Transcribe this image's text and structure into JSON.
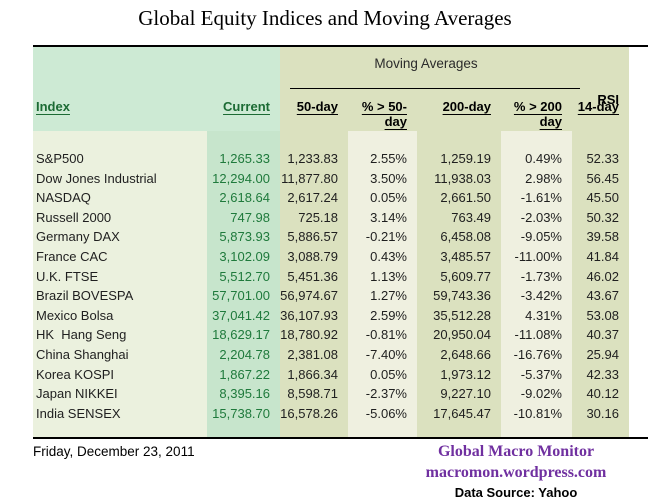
{
  "title": "Global Equity Indices and Moving Averages",
  "table": {
    "group_header": "Moving Averages",
    "rsi_header_top": "RSI",
    "columns": {
      "index": "Index",
      "current": "Current",
      "ma50": "50-day",
      "pct50": "% > 50-day",
      "ma200": "200-day",
      "pct200": "% > 200 day",
      "rsi": "14-day"
    },
    "rows": [
      {
        "index": "S&P500",
        "current": "1,265.33",
        "ma50": "1,233.83",
        "pct50": "2.55%",
        "ma200": "1,259.19",
        "pct200": "0.49%",
        "rsi": "52.33"
      },
      {
        "index": "Dow Jones Industrial",
        "current": "12,294.00",
        "ma50": "11,877.80",
        "pct50": "3.50%",
        "ma200": "11,938.03",
        "pct200": "2.98%",
        "rsi": "56.45"
      },
      {
        "index": "NASDAQ",
        "current": "2,618.64",
        "ma50": "2,617.24",
        "pct50": "0.05%",
        "ma200": "2,661.50",
        "pct200": "-1.61%",
        "rsi": "45.50"
      },
      {
        "index": "Russell 2000",
        "current": "747.98",
        "ma50": "725.18",
        "pct50": "3.14%",
        "ma200": "763.49",
        "pct200": "-2.03%",
        "rsi": "50.32"
      },
      {
        "index": "Germany DAX",
        "current": "5,873.93",
        "ma50": "5,886.57",
        "pct50": "-0.21%",
        "ma200": "6,458.08",
        "pct200": "-9.05%",
        "rsi": "39.58"
      },
      {
        "index": "France CAC",
        "current": "3,102.09",
        "ma50": "3,088.79",
        "pct50": "0.43%",
        "ma200": "3,485.57",
        "pct200": "-11.00%",
        "rsi": "41.84"
      },
      {
        "index": "U.K. FTSE",
        "current": "5,512.70",
        "ma50": "5,451.36",
        "pct50": "1.13%",
        "ma200": "5,609.77",
        "pct200": "-1.73%",
        "rsi": "46.02"
      },
      {
        "index": "Brazil BOVESPA",
        "current": "57,701.00",
        "ma50": "56,974.67",
        "pct50": "1.27%",
        "ma200": "59,743.36",
        "pct200": "-3.42%",
        "rsi": "43.67"
      },
      {
        "index": "Mexico Bolsa",
        "current": "37,041.42",
        "ma50": "36,107.93",
        "pct50": "2.59%",
        "ma200": "35,512.28",
        "pct200": "4.31%",
        "rsi": "53.08"
      },
      {
        "index": "HK  Hang Seng",
        "current": "18,629.17",
        "ma50": "18,780.92",
        "pct50": "-0.81%",
        "ma200": "20,950.04",
        "pct200": "-11.08%",
        "rsi": "40.37"
      },
      {
        "index": "China Shanghai",
        "current": "2,204.78",
        "ma50": "2,381.08",
        "pct50": "-7.40%",
        "ma200": "2,648.66",
        "pct200": "-16.76%",
        "rsi": "25.94"
      },
      {
        "index": "Korea KOSPI",
        "current": "1,867.22",
        "ma50": "1,866.34",
        "pct50": "0.05%",
        "ma200": "1,973.12",
        "pct200": "-5.37%",
        "rsi": "42.33"
      },
      {
        "index": "Japan NIKKEI",
        "current": "8,395.16",
        "ma50": "8,598.71",
        "pct50": "-2.37%",
        "ma200": "9,227.10",
        "pct200": "-9.02%",
        "rsi": "40.12"
      },
      {
        "index": "India SENSEX",
        "current": "15,738.70",
        "ma50": "16,578.26",
        "pct50": "-5.06%",
        "ma200": "17,645.47",
        "pct200": "-10.81%",
        "rsi": "30.16"
      }
    ]
  },
  "chart_data": {
    "type": "table",
    "title": "Global Equity Indices and Moving Averages",
    "columns": [
      "Index",
      "Current",
      "50-day",
      "% > 50-day",
      "200-day",
      "% > 200 day",
      "RSI 14-day"
    ],
    "categories": [
      "S&P500",
      "Dow Jones Industrial",
      "NASDAQ",
      "Russell 2000",
      "Germany DAX",
      "France CAC",
      "U.K. FTSE",
      "Brazil BOVESPA",
      "Mexico Bolsa",
      "HK Hang Seng",
      "China Shanghai",
      "Korea KOSPI",
      "Japan NIKKEI",
      "India SENSEX"
    ],
    "series": [
      {
        "name": "Current",
        "values": [
          1265.33,
          12294.0,
          2618.64,
          747.98,
          5873.93,
          3102.09,
          5512.7,
          57701.0,
          37041.42,
          18629.17,
          2204.78,
          1867.22,
          8395.16,
          15738.7
        ]
      },
      {
        "name": "50-day",
        "values": [
          1233.83,
          11877.8,
          2617.24,
          725.18,
          5886.57,
          3088.79,
          5451.36,
          56974.67,
          36107.93,
          18780.92,
          2381.08,
          1866.34,
          8598.71,
          16578.26
        ]
      },
      {
        "name": "% > 50-day",
        "values": [
          2.55,
          3.5,
          0.05,
          3.14,
          -0.21,
          0.43,
          1.13,
          1.27,
          2.59,
          -0.81,
          -7.4,
          0.05,
          -2.37,
          -5.06
        ]
      },
      {
        "name": "200-day",
        "values": [
          1259.19,
          11938.03,
          2661.5,
          763.49,
          6458.08,
          3485.57,
          5609.77,
          59743.36,
          35512.28,
          20950.04,
          2648.66,
          1973.12,
          9227.1,
          17645.47
        ]
      },
      {
        "name": "% > 200 day",
        "values": [
          0.49,
          2.98,
          -1.61,
          -2.03,
          -9.05,
          -11.0,
          -1.73,
          -3.42,
          4.31,
          -11.08,
          -16.76,
          -5.37,
          -9.02,
          -10.81
        ]
      },
      {
        "name": "RSI 14-day",
        "values": [
          52.33,
          56.45,
          45.5,
          50.32,
          39.58,
          41.84,
          46.02,
          43.67,
          53.08,
          40.37,
          25.94,
          42.33,
          40.12,
          30.16
        ]
      }
    ]
  },
  "footer": {
    "date": "Friday, December 23, 2011",
    "brand_name": "Global Macro Monitor",
    "brand_url": "macromon.wordpress.com",
    "source": "Data Source: Yahoo"
  },
  "colors": {
    "mint_header": "#cdead4",
    "mint_band": "#c7e5cc",
    "olive_band": "#dbe1bf",
    "cream_band": "#eff0e0",
    "name_band": "#ebf1de",
    "green_text": "#1f7a3c",
    "purple_brand": "#7030a0"
  }
}
